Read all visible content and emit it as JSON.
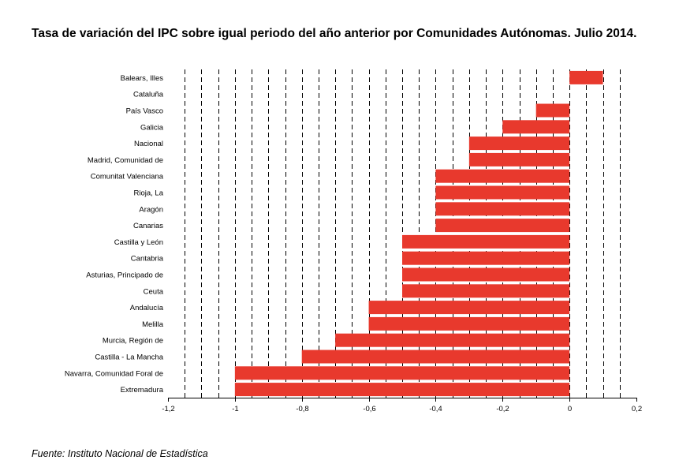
{
  "title": "Tasa de variación del IPC sobre igual periodo del año anterior por Comunidades Autónomas. Julio 2014.",
  "source": "Fuente: Instituto Nacional de Estadística",
  "chart_data": {
    "type": "bar",
    "orientation": "horizontal",
    "categories": [
      "Balears, Illes",
      "Cataluña",
      "País Vasco",
      "Galicia",
      "Nacional",
      "Madrid, Comunidad de",
      "Comunitat Valenciana",
      "Rioja, La",
      "Aragón",
      "Canarias",
      "Castilla y León",
      "Cantabria",
      "Asturias, Principado de",
      "Ceuta",
      "Andalucía",
      "Melilla",
      "Murcia, Región de",
      "Castilla - La Mancha",
      "Navarra, Comunidad Foral de",
      "Extremadura"
    ],
    "values": [
      0.1,
      0.0,
      -0.1,
      -0.2,
      -0.3,
      -0.3,
      -0.4,
      -0.4,
      -0.4,
      -0.4,
      -0.5,
      -0.5,
      -0.5,
      -0.5,
      -0.6,
      -0.6,
      -0.7,
      -0.8,
      -1.0,
      -1.0
    ],
    "xlim": [
      -1.2,
      0.2
    ],
    "xticks": [
      "-1,2",
      "-1",
      "-0,8",
      "-0,6",
      "-0,4",
      "-0,2",
      "0",
      "0,2"
    ],
    "xtick_values": [
      -1.2,
      -1.0,
      -0.8,
      -0.6,
      -0.4,
      -0.2,
      0.0,
      0.2
    ],
    "grid": "vertical dashed",
    "bar_color": "#e8392d"
  }
}
